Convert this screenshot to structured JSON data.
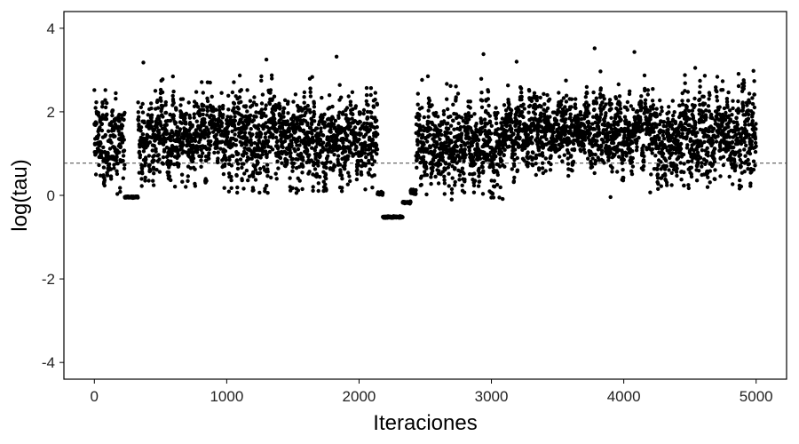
{
  "chart_data": {
    "type": "scatter",
    "title": "",
    "xlabel": "Iteraciones",
    "ylabel": "log(tau)",
    "xlim": [
      -230,
      5230
    ],
    "ylim": [
      -4.4,
      4.4
    ],
    "x_ticks": [
      0,
      1000,
      2000,
      3000,
      4000,
      5000
    ],
    "x_tick_labels": [
      "0",
      "1000",
      "2000",
      "3000",
      "4000",
      "5000"
    ],
    "y_ticks": [
      -4,
      -2,
      0,
      2,
      4
    ],
    "y_tick_labels": [
      "-4",
      "-2",
      "0",
      "2",
      "4"
    ],
    "reference_line": {
      "y": 0.77,
      "style": "dashed"
    },
    "grid": false,
    "legend": "none",
    "point_color": "#000000",
    "n_iterations": 5000,
    "segments": [
      {
        "x_range": [
          0,
          230
        ],
        "center": 1.3,
        "spread": 0.55
      },
      {
        "x_range": [
          230,
          330
        ],
        "center": -0.04,
        "spread": 0.01,
        "stuck": true
      },
      {
        "x_range": [
          330,
          1000
        ],
        "center": 1.45,
        "spread": 0.5
      },
      {
        "x_range": [
          1000,
          1900
        ],
        "center": 1.35,
        "spread": 0.55
      },
      {
        "x_range": [
          1900,
          2140
        ],
        "center": 1.4,
        "spread": 0.5
      },
      {
        "x_range": [
          2140,
          2180
        ],
        "center": 0.05,
        "spread": 0.02,
        "stuck": true
      },
      {
        "x_range": [
          2180,
          2330
        ],
        "center": -0.52,
        "spread": 0.01,
        "stuck": true
      },
      {
        "x_range": [
          2330,
          2390
        ],
        "center": -0.17,
        "spread": 0.01,
        "stuck": true
      },
      {
        "x_range": [
          2390,
          2430
        ],
        "center": 0.08,
        "spread": 0.03,
        "stuck": true
      },
      {
        "x_range": [
          2430,
          3100
        ],
        "center": 1.2,
        "spread": 0.55
      },
      {
        "x_range": [
          3100,
          4200
        ],
        "center": 1.55,
        "spread": 0.45
      },
      {
        "x_range": [
          4200,
          5000
        ],
        "center": 1.4,
        "spread": 0.55
      }
    ],
    "notable_points": [
      {
        "x": 370,
        "y": 3.18
      },
      {
        "x": 1300,
        "y": 3.25
      },
      {
        "x": 1830,
        "y": 3.32
      },
      {
        "x": 2940,
        "y": 3.38
      },
      {
        "x": 3190,
        "y": 3.2
      },
      {
        "x": 3780,
        "y": 3.52
      },
      {
        "x": 4080,
        "y": 3.43
      },
      {
        "x": 4980,
        "y": 2.98
      },
      {
        "x": 4540,
        "y": 3.05
      },
      {
        "x": 2520,
        "y": 2.85
      },
      {
        "x": 2700,
        "y": -0.1
      },
      {
        "x": 3900,
        "y": -0.04
      },
      {
        "x": 3060,
        "y": -0.05
      },
      {
        "x": 4200,
        "y": 0.07
      }
    ]
  }
}
